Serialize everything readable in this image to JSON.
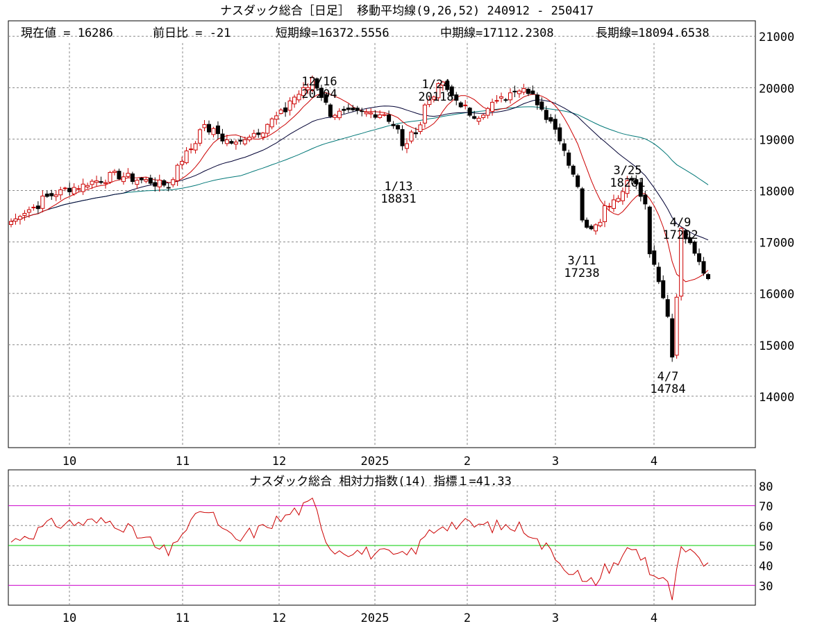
{
  "price_chart": {
    "title": "ナスダック総合［日足］ 移動平均線(9,26,52)  240912 - 250417",
    "info": {
      "current": "現在値 = 16286",
      "change": "前日比 = -21",
      "short_ma": "短期線=16372.5556",
      "mid_ma": "中期線=17112.2308",
      "long_ma": "長期線=18094.6538"
    },
    "y_ticks": [
      "21000",
      "20000",
      "19000",
      "18000",
      "17000",
      "16000",
      "15000",
      "14000"
    ],
    "x_ticks": [
      "10",
      "11",
      "12",
      "2025",
      "2",
      "3",
      "4"
    ],
    "annotations": [
      {
        "date": "12/16",
        "value": "20204"
      },
      {
        "date": "1/24",
        "value": "20118"
      },
      {
        "date": "1/13",
        "value": "18831"
      },
      {
        "date": "3/25",
        "value": "18281"
      },
      {
        "date": "3/11",
        "value": "17238"
      },
      {
        "date": "4/9",
        "value": "17202"
      },
      {
        "date": "4/7",
        "value": "14784"
      }
    ]
  },
  "rsi_chart": {
    "title": "ナスダック総合  相対力指数(14) 指標１=41.33",
    "y_ticks": [
      "80",
      "70",
      "60",
      "50",
      "40",
      "30"
    ],
    "x_ticks": [
      "10",
      "11",
      "12",
      "2025",
      "2",
      "3",
      "4"
    ]
  },
  "colors": {
    "up_candle": "#cc0000",
    "down_candle": "#000000",
    "short_ma": "#cc0000",
    "mid_ma": "#000033",
    "long_ma": "#007777",
    "rsi_line": "#cc0000",
    "rsi_70_30": "#cc00cc",
    "rsi_50": "#00cc00",
    "grid": "#888888"
  },
  "chart_data": [
    {
      "type": "candlestick",
      "title": "ナスダック総合［日足］ 移動平均線(9,26,52)  240912 - 250417",
      "period": "240912 - 250417",
      "ylim": [
        13000,
        21300
      ],
      "trend_keypoints": [
        {
          "date": "2024-09-12",
          "close": 17400
        },
        {
          "date": "2024-09-26",
          "close": 17950
        },
        {
          "date": "2024-10-15",
          "close": 18300
        },
        {
          "date": "2024-10-31",
          "close": 18100
        },
        {
          "date": "2024-11-11",
          "close": 19250
        },
        {
          "date": "2024-11-21",
          "close": 18900
        },
        {
          "date": "2024-12-02",
          "close": 19300
        },
        {
          "date": "2024-12-16",
          "close": 20204
        },
        {
          "date": "2024-12-20",
          "close": 19500
        },
        {
          "date": "2025-01-07",
          "close": 19500
        },
        {
          "date": "2025-01-13",
          "close": 18831
        },
        {
          "date": "2025-01-24",
          "close": 20118
        },
        {
          "date": "2025-02-03",
          "close": 19400
        },
        {
          "date": "2025-02-19",
          "close": 20050
        },
        {
          "date": "2025-03-03",
          "close": 19000
        },
        {
          "date": "2025-03-11",
          "close": 17238
        },
        {
          "date": "2025-03-25",
          "close": 18281
        },
        {
          "date": "2025-03-28",
          "close": 17700
        },
        {
          "date": "2025-04-04",
          "close": 15590
        },
        {
          "date": "2025-04-07",
          "close": 14784
        },
        {
          "date": "2025-04-09",
          "close": 17202
        },
        {
          "date": "2025-04-14",
          "close": 16830
        },
        {
          "date": "2025-04-17",
          "close": 16286
        }
      ],
      "moving_averages": [
        {
          "name": "短期線",
          "period": 9,
          "last": 16372.5556
        },
        {
          "name": "中期線",
          "period": 26,
          "last": 17112.2308
        },
        {
          "name": "長期線",
          "period": 52,
          "last": 18094.6538
        }
      ]
    },
    {
      "type": "line",
      "title": "ナスダック総合  相対力指数(14) 指標１=41.33",
      "ylim": [
        20,
        88
      ],
      "reference_lines": [
        70,
        50,
        30
      ],
      "last": 41.33,
      "keypoints": [
        {
          "date": "2024-09-12",
          "value": 52
        },
        {
          "date": "2024-09-26",
          "value": 61
        },
        {
          "date": "2024-10-15",
          "value": 62
        },
        {
          "date": "2024-10-31",
          "value": 46
        },
        {
          "date": "2024-11-11",
          "value": 69
        },
        {
          "date": "2024-11-21",
          "value": 52
        },
        {
          "date": "2024-12-16",
          "value": 72
        },
        {
          "date": "2024-12-20",
          "value": 49
        },
        {
          "date": "2025-01-13",
          "value": 44
        },
        {
          "date": "2025-01-24",
          "value": 61
        },
        {
          "date": "2025-02-19",
          "value": 59
        },
        {
          "date": "2025-03-11",
          "value": 30
        },
        {
          "date": "2025-03-25",
          "value": 49
        },
        {
          "date": "2025-04-07",
          "value": 24
        },
        {
          "date": "2025-04-09",
          "value": 47
        },
        {
          "date": "2025-04-17",
          "value": 41.33
        }
      ]
    }
  ]
}
